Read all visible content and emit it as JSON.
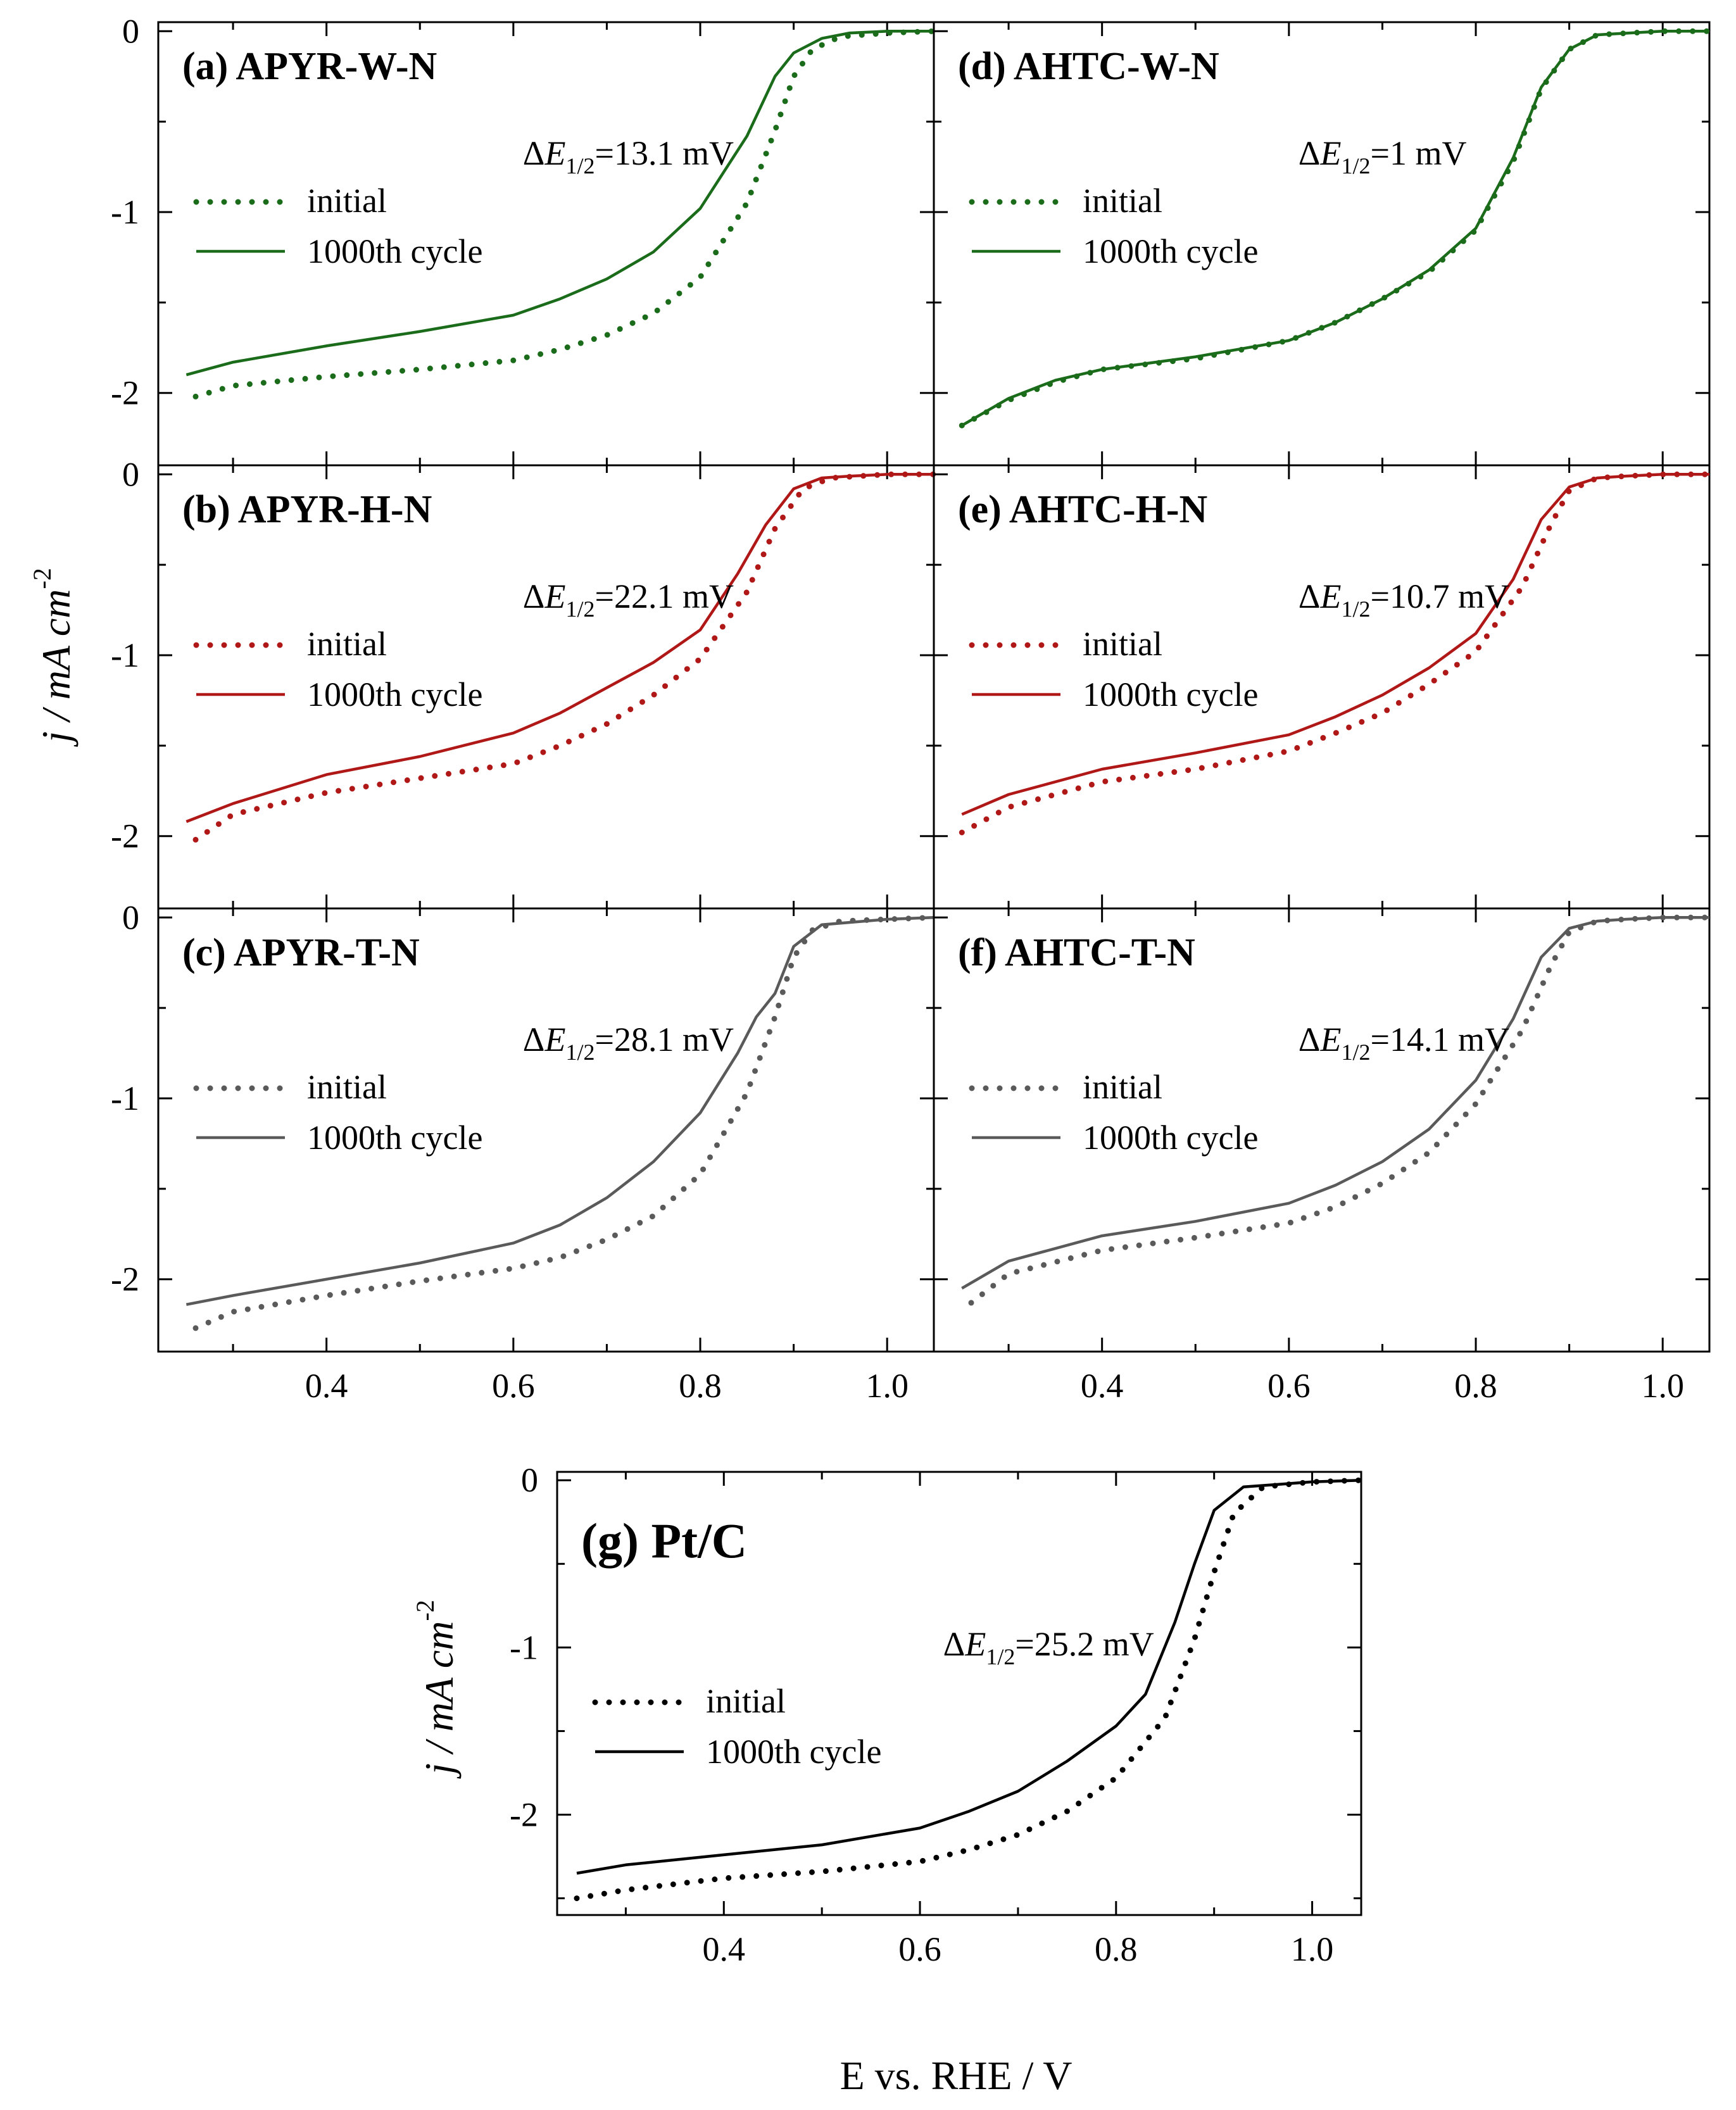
{
  "figure": {
    "ylabel_main": "j / mA cm",
    "ylabel_unit_exp": "-2",
    "ylabel_pt": "j / mA cm",
    "xlabel": "E vs. RHE / V",
    "legend_initial": "initial",
    "legend_final": "1000th cycle",
    "delta_prefix": "ΔE",
    "delta_sub": "1/2"
  },
  "chart_data": [
    {
      "id": "a",
      "type": "line",
      "title": "(a) APYR-W-N",
      "color": "#1a6b1a",
      "delta": "=13.1 mV",
      "xlim": [
        0.22,
        1.05
      ],
      "ylim": [
        -2.4,
        0.05
      ],
      "xticks": [
        0.4,
        0.6,
        0.8,
        1.0
      ],
      "yticks": [
        0,
        -1,
        -2
      ],
      "xticklabels": [
        "0.4",
        "0.6",
        "0.8",
        "1.0"
      ],
      "yticklabels": [
        "0",
        "-1",
        "-2"
      ],
      "series": [
        {
          "name": "initial",
          "style": "dotted",
          "x": [
            0.26,
            0.3,
            0.4,
            0.5,
            0.6,
            0.65,
            0.7,
            0.75,
            0.8,
            0.85,
            0.88,
            0.9,
            0.92,
            0.95,
            1.0,
            1.05
          ],
          "y": [
            -2.02,
            -1.96,
            -1.91,
            -1.87,
            -1.82,
            -1.76,
            -1.68,
            -1.56,
            -1.36,
            -0.95,
            -0.55,
            -0.25,
            -0.1,
            -0.03,
            -0.01,
            0.0
          ]
        },
        {
          "name": "1000th cycle",
          "style": "solid",
          "x": [
            0.25,
            0.3,
            0.4,
            0.5,
            0.6,
            0.65,
            0.7,
            0.75,
            0.8,
            0.85,
            0.88,
            0.9,
            0.93,
            0.96,
            1.0,
            1.05
          ],
          "y": [
            -1.9,
            -1.83,
            -1.74,
            -1.66,
            -1.57,
            -1.48,
            -1.37,
            -1.22,
            -0.98,
            -0.58,
            -0.25,
            -0.12,
            -0.04,
            -0.01,
            0.0,
            0.0
          ]
        }
      ]
    },
    {
      "id": "b",
      "type": "line",
      "title": "(b) APYR-H-N",
      "color": "#b01818",
      "delta": "=22.1 mV",
      "xlim": [
        0.22,
        1.05
      ],
      "ylim": [
        -2.4,
        0.05
      ],
      "xticks": [
        0.4,
        0.6,
        0.8,
        1.0
      ],
      "yticks": [
        0,
        -1,
        -2
      ],
      "xticklabels": [
        "0.4",
        "0.6",
        "0.8",
        "1.0"
      ],
      "yticklabels": [
        "0",
        "-1",
        "-2"
      ],
      "series": [
        {
          "name": "initial",
          "style": "dotted",
          "x": [
            0.26,
            0.3,
            0.4,
            0.5,
            0.6,
            0.65,
            0.7,
            0.75,
            0.8,
            0.85,
            0.88,
            0.91,
            0.94,
            0.97,
            1.0,
            1.05
          ],
          "y": [
            -2.02,
            -1.88,
            -1.76,
            -1.68,
            -1.6,
            -1.5,
            -1.38,
            -1.22,
            -1.02,
            -0.65,
            -0.3,
            -0.08,
            -0.02,
            -0.01,
            0.0,
            0.0
          ]
        },
        {
          "name": "1000th cycle",
          "style": "solid",
          "x": [
            0.25,
            0.3,
            0.4,
            0.5,
            0.6,
            0.65,
            0.7,
            0.75,
            0.8,
            0.84,
            0.87,
            0.9,
            0.93,
            0.96,
            1.0,
            1.05
          ],
          "y": [
            -1.92,
            -1.82,
            -1.66,
            -1.56,
            -1.43,
            -1.32,
            -1.18,
            -1.04,
            -0.86,
            -0.55,
            -0.28,
            -0.08,
            -0.02,
            -0.01,
            0.0,
            0.0
          ]
        }
      ]
    },
    {
      "id": "c",
      "type": "line",
      "title": "(c) APYR-T-N",
      "color": "#5a5a5a",
      "delta": "=28.1 mV",
      "xlim": [
        0.22,
        1.05
      ],
      "ylim": [
        -2.4,
        0.05
      ],
      "xticks": [
        0.4,
        0.6,
        0.8,
        1.0
      ],
      "yticks": [
        0,
        -1,
        -2
      ],
      "xticklabels": [
        "0.4",
        "0.6",
        "0.8",
        "1.0"
      ],
      "yticklabels": [
        "0",
        "-1",
        "-2"
      ],
      "series": [
        {
          "name": "initial",
          "style": "dotted",
          "x": [
            0.26,
            0.3,
            0.4,
            0.5,
            0.6,
            0.65,
            0.7,
            0.75,
            0.8,
            0.85,
            0.88,
            0.9,
            0.92,
            0.95,
            1.0,
            1.05
          ],
          "y": [
            -2.27,
            -2.18,
            -2.09,
            -2.01,
            -1.94,
            -1.88,
            -1.78,
            -1.65,
            -1.42,
            -0.97,
            -0.55,
            -0.22,
            -0.07,
            -0.02,
            -0.01,
            0.0
          ]
        },
        {
          "name": "1000th cycle",
          "style": "solid",
          "x": [
            0.25,
            0.3,
            0.4,
            0.5,
            0.6,
            0.65,
            0.7,
            0.75,
            0.8,
            0.84,
            0.86,
            0.88,
            0.9,
            0.93,
            1.0,
            1.05
          ],
          "y": [
            -2.14,
            -2.09,
            -2.0,
            -1.91,
            -1.8,
            -1.7,
            -1.55,
            -1.35,
            -1.08,
            -0.75,
            -0.55,
            -0.42,
            -0.16,
            -0.04,
            -0.01,
            0.0
          ]
        }
      ]
    },
    {
      "id": "d",
      "type": "line",
      "title": "(d) AHTC-W-N",
      "color": "#1a6b1a",
      "delta": "=1 mV",
      "xlim": [
        0.22,
        1.05
      ],
      "ylim": [
        -2.4,
        0.05
      ],
      "xticks": [
        0.4,
        0.6,
        0.8,
        1.0
      ],
      "yticks": [
        0,
        -1,
        -2
      ],
      "xticklabels": [
        "0.4",
        "0.6",
        "0.8",
        "1.0"
      ],
      "yticklabels": [
        "0",
        "-1",
        "-2"
      ],
      "series": [
        {
          "name": "initial",
          "style": "dotted",
          "x": [
            0.25,
            0.3,
            0.35,
            0.4,
            0.5,
            0.6,
            0.65,
            0.7,
            0.75,
            0.8,
            0.84,
            0.87,
            0.9,
            0.93,
            1.0,
            1.05
          ],
          "y": [
            -2.18,
            -2.04,
            -1.94,
            -1.87,
            -1.81,
            -1.71,
            -1.61,
            -1.48,
            -1.33,
            -1.1,
            -0.72,
            -0.32,
            -0.1,
            -0.02,
            0.0,
            0.0
          ]
        },
        {
          "name": "1000th cycle",
          "style": "solid",
          "x": [
            0.25,
            0.3,
            0.35,
            0.4,
            0.5,
            0.6,
            0.65,
            0.7,
            0.75,
            0.8,
            0.84,
            0.87,
            0.9,
            0.93,
            1.0,
            1.05
          ],
          "y": [
            -2.18,
            -2.03,
            -1.93,
            -1.87,
            -1.8,
            -1.71,
            -1.61,
            -1.48,
            -1.32,
            -1.09,
            -0.7,
            -0.31,
            -0.1,
            -0.02,
            0.0,
            0.0
          ]
        }
      ]
    },
    {
      "id": "e",
      "type": "line",
      "title": "(e) AHTC-H-N",
      "color": "#b01818",
      "delta": "=10.7 mV",
      "xlim": [
        0.22,
        1.05
      ],
      "ylim": [
        -2.4,
        0.05
      ],
      "xticks": [
        0.4,
        0.6,
        0.8,
        1.0
      ],
      "yticks": [
        0,
        -1,
        -2
      ],
      "xticklabels": [
        "0.4",
        "0.6",
        "0.8",
        "1.0"
      ],
      "yticklabels": [
        "0",
        "-1",
        "-2"
      ],
      "series": [
        {
          "name": "initial",
          "style": "dotted",
          "x": [
            0.25,
            0.3,
            0.4,
            0.5,
            0.6,
            0.65,
            0.7,
            0.75,
            0.8,
            0.85,
            0.88,
            0.9,
            0.93,
            0.96,
            1.0,
            1.05
          ],
          "y": [
            -1.98,
            -1.84,
            -1.7,
            -1.63,
            -1.53,
            -1.43,
            -1.32,
            -1.16,
            -0.98,
            -0.62,
            -0.28,
            -0.09,
            -0.02,
            -0.01,
            0.0,
            0.0
          ]
        },
        {
          "name": "1000th cycle",
          "style": "solid",
          "x": [
            0.25,
            0.3,
            0.4,
            0.5,
            0.6,
            0.65,
            0.7,
            0.75,
            0.8,
            0.84,
            0.87,
            0.9,
            0.93,
            0.96,
            1.0,
            1.05
          ],
          "y": [
            -1.88,
            -1.77,
            -1.63,
            -1.54,
            -1.44,
            -1.34,
            -1.22,
            -1.07,
            -0.88,
            -0.58,
            -0.25,
            -0.07,
            -0.02,
            -0.01,
            0.0,
            0.0
          ]
        }
      ]
    },
    {
      "id": "f",
      "type": "line",
      "title": "(f) AHTC-T-N",
      "color": "#5a5a5a",
      "delta": "=14.1 mV",
      "xlim": [
        0.22,
        1.05
      ],
      "ylim": [
        -2.4,
        0.05
      ],
      "xticks": [
        0.4,
        0.6,
        0.8,
        1.0
      ],
      "yticks": [
        0,
        -1,
        -2
      ],
      "xticklabels": [
        "0.4",
        "0.6",
        "0.8",
        "1.0"
      ],
      "yticklabels": [
        "0",
        "-1",
        "-2"
      ],
      "series": [
        {
          "name": "initial",
          "style": "dotted",
          "x": [
            0.26,
            0.3,
            0.4,
            0.5,
            0.6,
            0.65,
            0.7,
            0.75,
            0.8,
            0.85,
            0.88,
            0.9,
            0.93,
            0.96,
            1.0,
            1.05
          ],
          "y": [
            -2.13,
            -1.97,
            -1.84,
            -1.77,
            -1.69,
            -1.6,
            -1.47,
            -1.3,
            -1.03,
            -0.62,
            -0.27,
            -0.08,
            -0.02,
            -0.01,
            0.0,
            0.0
          ]
        },
        {
          "name": "1000th cycle",
          "style": "solid",
          "x": [
            0.25,
            0.3,
            0.4,
            0.5,
            0.6,
            0.65,
            0.7,
            0.75,
            0.8,
            0.84,
            0.87,
            0.9,
            0.93,
            0.96,
            1.0,
            1.05
          ],
          "y": [
            -2.05,
            -1.9,
            -1.76,
            -1.68,
            -1.58,
            -1.48,
            -1.35,
            -1.17,
            -0.9,
            -0.56,
            -0.22,
            -0.06,
            -0.02,
            -0.01,
            0.0,
            0.0
          ]
        }
      ]
    },
    {
      "id": "g",
      "type": "line",
      "title": "(g) Pt/C",
      "color": "#000000",
      "delta": "=25.2 mV",
      "xlim": [
        0.23,
        1.05
      ],
      "ylim": [
        -2.6,
        0.05
      ],
      "xticks": [
        0.4,
        0.6,
        0.8,
        1.0
      ],
      "yticks": [
        0,
        -1,
        -2
      ],
      "xticklabels": [
        "0.4",
        "0.6",
        "0.8",
        "1.0"
      ],
      "yticklabels": [
        "0",
        "-1",
        "-2"
      ],
      "series": [
        {
          "name": "initial",
          "style": "dotted",
          "x": [
            0.25,
            0.3,
            0.4,
            0.5,
            0.6,
            0.65,
            0.7,
            0.75,
            0.8,
            0.85,
            0.88,
            0.9,
            0.92,
            0.95,
            1.0,
            1.05
          ],
          "y": [
            -2.5,
            -2.45,
            -2.38,
            -2.34,
            -2.28,
            -2.21,
            -2.12,
            -1.98,
            -1.78,
            -1.42,
            -0.95,
            -0.55,
            -0.2,
            -0.04,
            -0.01,
            0.0
          ]
        },
        {
          "name": "1000th cycle",
          "style": "solid",
          "x": [
            0.25,
            0.3,
            0.4,
            0.5,
            0.6,
            0.65,
            0.7,
            0.75,
            0.8,
            0.83,
            0.86,
            0.88,
            0.9,
            0.93,
            1.0,
            1.05
          ],
          "y": [
            -2.35,
            -2.3,
            -2.24,
            -2.18,
            -2.08,
            -1.98,
            -1.86,
            -1.68,
            -1.47,
            -1.28,
            -0.85,
            -0.5,
            -0.18,
            -0.04,
            -0.01,
            0.0
          ]
        }
      ]
    }
  ]
}
